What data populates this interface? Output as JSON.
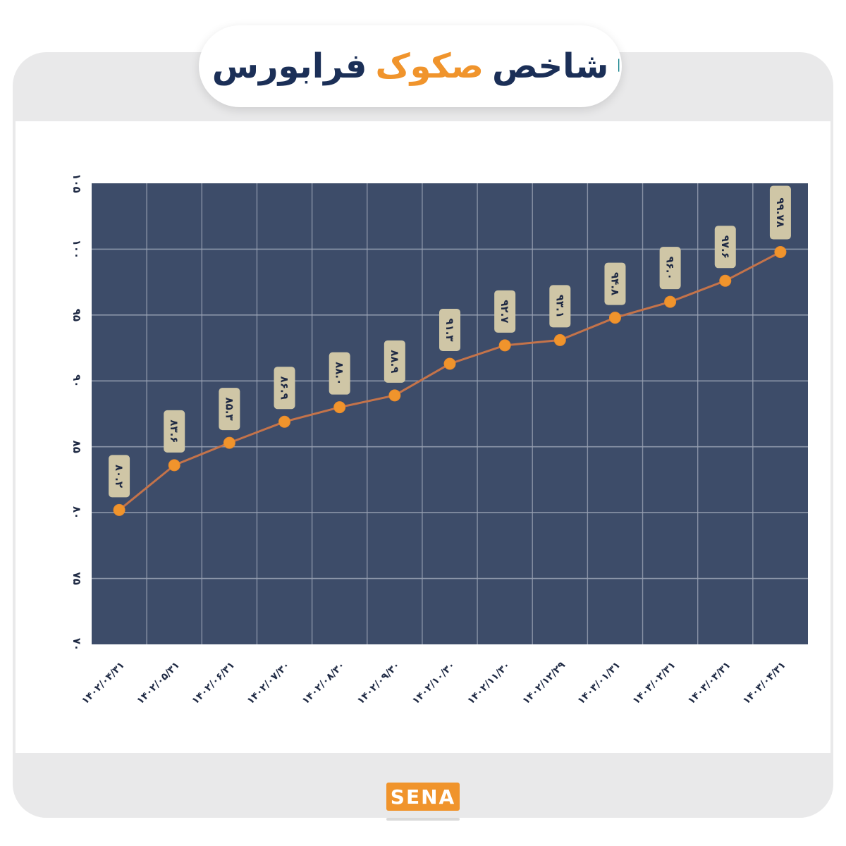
{
  "title": {
    "open_quote": "❝",
    "close_quote": "❞",
    "word1": "شاخص",
    "word2": "صکوک",
    "word3": "فرابورس"
  },
  "logo": {
    "text": "SENA"
  },
  "colors": {
    "plot_bg": "#3d4c69",
    "grid": "#9aa3b5",
    "line": "#c4734a",
    "marker": "#f0942c",
    "label_bg": "#cfc6a6",
    "label_text": "#1f2a44",
    "axis_text": "#1f2a44",
    "accent_teal": "#11808a",
    "accent_orange": "#f0942c",
    "navy": "#1b2f57"
  },
  "chart_data": {
    "type": "line",
    "ylim": [
      70,
      105
    ],
    "y_ticks": [
      70,
      75,
      80,
      85,
      90,
      95,
      100,
      105
    ],
    "y_tick_labels": [
      "۷۰",
      "۷۵",
      "۸۰",
      "۸۵",
      "۹۰",
      "۹۵",
      "۱۰۰",
      "۱۰۵"
    ],
    "categories": [
      "۱۴۰۲/۰۴/۳۱",
      "۱۴۰۲/۰۵/۳۱",
      "۱۴۰۲/۰۶/۳۱",
      "۱۴۰۲/۰۷/۳۰",
      "۱۴۰۲/۰۸/۳۰",
      "۱۴۰۲/۰۹/۳۰",
      "۱۴۰۲/۱۰/۳۰",
      "۱۴۰۲/۱۱/۳۰",
      "۱۴۰۲/۱۲/۲۹",
      "۱۴۰۳/۰۱/۳۱",
      "۱۴۰۳/۰۲/۳۱",
      "۱۴۰۳/۰۳/۳۱",
      "۱۴۰۳/۰۴/۳۱"
    ],
    "values": [
      80.2,
      83.6,
      85.3,
      86.9,
      88.0,
      88.9,
      91.3,
      92.7,
      93.1,
      94.8,
      96.0,
      97.6,
      99.78
    ],
    "data_labels": [
      "۸۰.۲",
      "۸۳.۶",
      "۸۵.۳",
      "۸۶.۹",
      "۸۸.۰",
      "۸۸.۹",
      "۹۱.۳",
      "۹۲.۷",
      "۹۳.۱",
      "۹۴.۸",
      "۹۶.۰",
      "۹۷.۶",
      "۹۹.۷۸"
    ],
    "grid": true
  }
}
